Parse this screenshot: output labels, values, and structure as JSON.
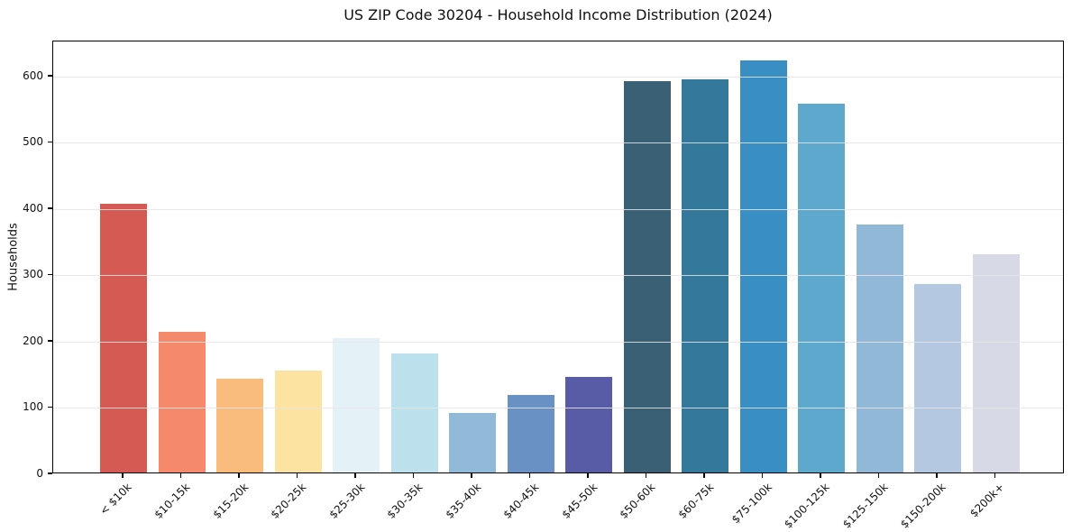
{
  "chart_data": {
    "type": "bar",
    "title": "US ZIP Code 30204 - Household Income Distribution (2024)",
    "xlabel": "",
    "ylabel": "Households",
    "categories": [
      "< $10k",
      "$10-15k",
      "$15-20k",
      "$20-25k",
      "$25-30k",
      "$30-35k",
      "$35-40k",
      "$40-45k",
      "$45-50k",
      "$50-60k",
      "$60-75k",
      "$75-100k",
      "$100-125k",
      "$125-150k",
      "$150-200k",
      "$200k+"
    ],
    "values": [
      405,
      212,
      141,
      154,
      203,
      180,
      90,
      117,
      144,
      590,
      593,
      622,
      556,
      374,
      284,
      329
    ],
    "bar_colors": [
      "#d55a54",
      "#f48a6b",
      "#fabc7d",
      "#fde3a1",
      "#e4f2f7",
      "#bce0ec",
      "#90bad8",
      "#6a91c4",
      "#585ca6",
      "#3a6076",
      "#34789c",
      "#398fc3",
      "#5fa8cd",
      "#92b8d8",
      "#b5c8e1",
      "#d8d9e7"
    ],
    "yticks": [
      0,
      100,
      200,
      300,
      400,
      500,
      600
    ],
    "ylim": [
      0,
      653
    ],
    "grid": "horizontal",
    "gridline_color": "rgba(229,229,229,0.85)",
    "legend": "none",
    "background": "#ffffff",
    "frame_color": "#000000"
  }
}
